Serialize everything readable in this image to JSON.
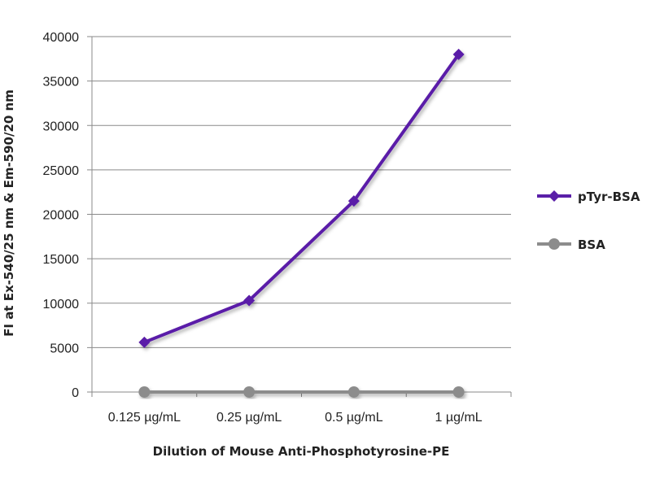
{
  "chart_data": {
    "type": "line",
    "title": "",
    "xlabel": "Dilution of Mouse Anti-Phosphotyrosine-PE",
    "ylabel": "FI at Ex-540/25 nm & Em-590/20 nm",
    "categories": [
      "0.125 µg/mL",
      "0.25 µg/mL",
      "0.5 µg/mL",
      "1 µg/mL"
    ],
    "ylim": [
      0,
      40000
    ],
    "yticks": [
      0,
      5000,
      10000,
      15000,
      20000,
      25000,
      30000,
      35000,
      40000
    ],
    "grid": true,
    "legend_position": "right",
    "series": [
      {
        "name": "pTyr-BSA",
        "values": [
          5600,
          10300,
          21500,
          38000
        ],
        "color": "#5a1fa8",
        "marker": "diamond"
      },
      {
        "name": "BSA",
        "values": [
          0,
          0,
          0,
          0
        ],
        "color": "#8c8c8c",
        "marker": "circle"
      }
    ]
  }
}
